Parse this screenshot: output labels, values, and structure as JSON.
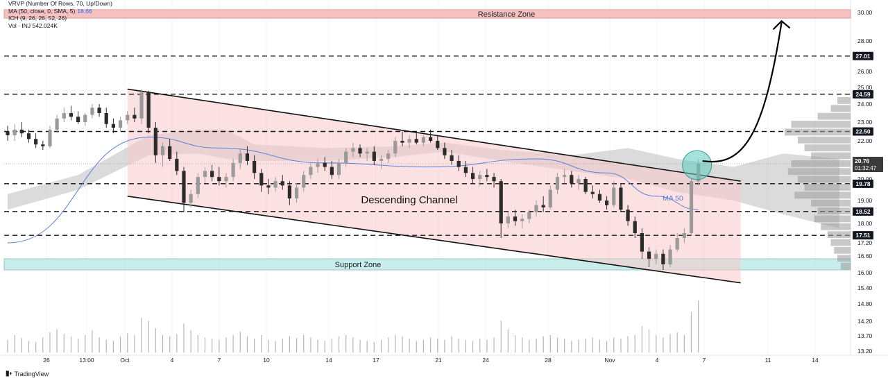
{
  "legend": {
    "vrvp": "VRVP (Number Of Rows, 70, Up/Down)",
    "ma": "MA (50, close, 0, SMA, 5)",
    "ma_value": "18.66",
    "ich": "ICH (9, 26, 26, 52, 26)",
    "vol": "Vol · INJ 542.024K"
  },
  "brand": {
    "text": "TradingView",
    "icon": "tradingview-logo-icon"
  },
  "colors": {
    "up": "#9a9a9a",
    "down": "#2b2b2b",
    "channel_fill": "#f7c9c9",
    "resistance_fill": "#f4b6b6",
    "support_fill": "#bfeae6",
    "ma": "#5b7fd6",
    "cloud": "#bdbdbd",
    "highlight": "#5fc9c0",
    "price_tag_bg": "#131722"
  },
  "chart_data": {
    "type": "candlestick",
    "title": "",
    "y_axis": {
      "ticks": [
        "30.00",
        "28.00",
        "26.00",
        "25.00",
        "24.00",
        "23.00",
        "22.00",
        "21.00",
        "20.00",
        "19.00",
        "18.00",
        "17.20",
        "16.60",
        "16.00",
        "15.40",
        "14.80",
        "14.20",
        "13.70",
        "13.20"
      ],
      "range": [
        13.2,
        30.3
      ],
      "scale": "log"
    },
    "x_axis": {
      "ticks": [
        "26",
        "13:00",
        "Oct",
        "4",
        "7",
        "10",
        "14",
        "17",
        "21",
        "24",
        "28",
        "Nov",
        "4",
        "7",
        "11",
        "14"
      ]
    },
    "levels": [
      {
        "label": "27.01",
        "value": 27.01
      },
      {
        "label": "24.59",
        "value": 24.59
      },
      {
        "label": "22.50",
        "value": 22.5
      },
      {
        "label": "19.78",
        "value": 19.78
      },
      {
        "label": "18.52",
        "value": 18.52
      },
      {
        "label": "17.51",
        "value": 17.51
      }
    ],
    "current_price": {
      "value": 20.76,
      "label": "20.76",
      "countdown": "01:32:47"
    },
    "zones": [
      {
        "label": "Resistance Zone",
        "low": 29.6,
        "high": 30.2
      },
      {
        "label": "Support Zone",
        "low": 16.1,
        "high": 16.5
      }
    ],
    "annotations": {
      "channel": "Descending Channel",
      "ma": "MA 50"
    },
    "channel": {
      "upper": {
        "start": [
          "Oct",
          24.9
        ],
        "end": [
          "Nov 7",
          19.9
        ]
      },
      "lower": {
        "start": [
          "Oct",
          19.2
        ],
        "end": [
          "Nov 7",
          15.6
        ]
      }
    },
    "candles": [
      [
        22.5,
        22.8,
        22.0,
        22.3
      ],
      [
        22.3,
        22.9,
        22.0,
        22.6
      ],
      [
        22.6,
        23.0,
        22.2,
        22.4
      ],
      [
        22.4,
        22.6,
        21.9,
        22.1
      ],
      [
        22.1,
        22.4,
        21.6,
        21.8
      ],
      [
        21.8,
        22.0,
        21.5,
        21.7
      ],
      [
        21.7,
        22.8,
        21.6,
        22.6
      ],
      [
        22.6,
        23.4,
        22.4,
        23.2
      ],
      [
        23.2,
        23.8,
        23.0,
        23.5
      ],
      [
        23.5,
        23.9,
        23.1,
        23.3
      ],
      [
        23.3,
        23.6,
        22.9,
        23.0
      ],
      [
        23.0,
        23.5,
        22.8,
        23.4
      ],
      [
        23.4,
        24.0,
        23.2,
        23.8
      ],
      [
        23.8,
        24.0,
        23.3,
        23.5
      ],
      [
        23.5,
        23.8,
        22.7,
        22.9
      ],
      [
        22.9,
        23.2,
        22.4,
        22.7
      ],
      [
        22.7,
        23.3,
        22.5,
        23.1
      ],
      [
        23.1,
        23.6,
        22.9,
        23.4
      ],
      [
        23.4,
        23.8,
        23.0,
        23.2
      ],
      [
        23.2,
        24.9,
        22.9,
        24.7
      ],
      [
        24.7,
        24.8,
        22.4,
        22.7
      ],
      [
        22.7,
        23.0,
        20.8,
        21.2
      ],
      [
        21.2,
        21.9,
        20.6,
        21.7
      ],
      [
        21.7,
        22.1,
        20.9,
        21.0
      ],
      [
        21.0,
        21.4,
        20.2,
        20.4
      ],
      [
        20.4,
        20.6,
        18.5,
        18.9
      ],
      [
        18.9,
        19.5,
        18.7,
        19.3
      ],
      [
        19.3,
        20.3,
        19.1,
        20.1
      ],
      [
        20.1,
        20.6,
        19.8,
        20.4
      ],
      [
        20.4,
        20.7,
        19.9,
        20.1
      ],
      [
        20.1,
        20.6,
        19.7,
        19.9
      ],
      [
        19.9,
        20.3,
        19.6,
        20.1
      ],
      [
        20.1,
        21.0,
        19.9,
        20.8
      ],
      [
        20.8,
        21.6,
        20.5,
        21.3
      ],
      [
        21.3,
        21.7,
        20.7,
        20.9
      ],
      [
        20.9,
        21.2,
        20.0,
        20.3
      ],
      [
        20.3,
        20.5,
        19.4,
        19.7
      ],
      [
        19.7,
        20.0,
        19.3,
        19.6
      ],
      [
        19.6,
        20.1,
        19.4,
        19.9
      ],
      [
        19.9,
        20.2,
        19.5,
        19.7
      ],
      [
        19.7,
        19.9,
        18.8,
        19.1
      ],
      [
        19.1,
        19.8,
        18.9,
        19.6
      ],
      [
        19.6,
        20.4,
        19.4,
        20.2
      ],
      [
        20.2,
        20.8,
        20.0,
        20.6
      ],
      [
        20.6,
        21.0,
        20.3,
        20.8
      ],
      [
        20.8,
        21.1,
        20.4,
        20.6
      ],
      [
        20.6,
        20.9,
        20.0,
        20.2
      ],
      [
        20.2,
        21.0,
        20.0,
        20.8
      ],
      [
        20.8,
        21.6,
        20.6,
        21.4
      ],
      [
        21.4,
        21.9,
        21.1,
        21.6
      ],
      [
        21.6,
        21.8,
        21.1,
        21.3
      ],
      [
        21.3,
        21.6,
        20.9,
        21.4
      ],
      [
        21.4,
        21.7,
        20.7,
        20.9
      ],
      [
        20.9,
        21.2,
        20.5,
        21.0
      ],
      [
        21.0,
        21.5,
        20.8,
        21.3
      ],
      [
        21.3,
        22.2,
        21.1,
        22.0
      ],
      [
        22.0,
        22.5,
        21.7,
        21.9
      ],
      [
        21.9,
        22.3,
        21.6,
        22.1
      ],
      [
        22.1,
        22.4,
        21.8,
        21.9
      ],
      [
        21.9,
        22.3,
        21.7,
        22.2
      ],
      [
        22.2,
        22.6,
        21.9,
        22.0
      ],
      [
        22.0,
        22.3,
        21.5,
        21.6
      ],
      [
        21.6,
        21.9,
        21.0,
        21.2
      ],
      [
        21.2,
        21.5,
        20.7,
        20.9
      ],
      [
        20.9,
        21.2,
        20.4,
        20.6
      ],
      [
        20.6,
        20.9,
        20.1,
        20.3
      ],
      [
        20.3,
        20.6,
        19.8,
        20.0
      ],
      [
        20.0,
        20.4,
        19.7,
        20.2
      ],
      [
        20.2,
        20.5,
        19.9,
        20.1
      ],
      [
        20.1,
        20.3,
        19.6,
        19.9
      ],
      [
        19.9,
        20.0,
        17.4,
        18.0
      ],
      [
        18.0,
        18.5,
        17.8,
        18.3
      ],
      [
        18.3,
        18.6,
        17.9,
        18.1
      ],
      [
        18.1,
        18.4,
        17.8,
        18.2
      ],
      [
        18.2,
        18.6,
        18.0,
        18.5
      ],
      [
        18.5,
        19.0,
        18.3,
        18.8
      ],
      [
        18.8,
        19.2,
        18.5,
        18.7
      ],
      [
        18.7,
        19.7,
        18.6,
        19.5
      ],
      [
        19.5,
        20.3,
        19.3,
        20.1
      ],
      [
        20.1,
        20.5,
        19.8,
        20.2
      ],
      [
        20.2,
        20.4,
        19.6,
        19.8
      ],
      [
        19.8,
        20.2,
        19.5,
        20.0
      ],
      [
        20.0,
        20.1,
        19.3,
        19.4
      ],
      [
        19.4,
        19.7,
        19.1,
        19.3
      ],
      [
        19.3,
        19.5,
        18.9,
        19.0
      ],
      [
        19.0,
        19.2,
        18.6,
        18.8
      ],
      [
        18.8,
        19.9,
        18.7,
        19.6
      ],
      [
        19.6,
        19.8,
        18.5,
        18.6
      ],
      [
        18.6,
        18.8,
        17.9,
        18.1
      ],
      [
        18.1,
        18.3,
        17.4,
        17.6
      ],
      [
        17.6,
        17.8,
        16.5,
        16.8
      ],
      [
        16.8,
        17.0,
        16.2,
        16.5
      ],
      [
        16.5,
        16.9,
        16.3,
        16.7
      ],
      [
        16.7,
        16.9,
        16.1,
        16.3
      ],
      [
        16.3,
        17.1,
        16.2,
        16.9
      ],
      [
        16.9,
        17.6,
        16.8,
        17.4
      ],
      [
        17.4,
        17.8,
        17.2,
        17.6
      ],
      [
        17.6,
        20.0,
        17.5,
        19.9
      ],
      [
        19.9,
        21.0,
        19.7,
        20.76
      ]
    ],
    "volume": [
      22,
      30,
      25,
      20,
      18,
      26,
      35,
      40,
      32,
      28,
      24,
      30,
      38,
      26,
      22,
      20,
      28,
      33,
      30,
      60,
      55,
      42,
      30,
      28,
      32,
      50,
      38,
      30,
      26,
      24,
      22,
      26,
      30,
      36,
      28,
      24,
      30,
      22,
      20,
      24,
      28,
      25,
      30,
      26,
      22,
      20,
      24,
      28,
      30,
      26,
      22,
      20,
      18,
      22,
      26,
      30,
      28,
      24,
      20,
      22,
      26,
      24,
      22,
      28,
      24,
      22,
      20,
      24,
      22,
      26,
      55,
      40,
      30,
      26,
      22,
      24,
      28,
      30,
      26,
      24,
      20,
      22,
      24,
      26,
      22,
      20,
      26,
      24,
      28,
      30,
      45,
      40,
      30,
      26,
      32,
      35,
      30,
      70,
      90
    ],
    "ma50": [
      [
        0,
        17.2
      ],
      [
        20,
        22.2
      ],
      [
        30,
        21.6
      ],
      [
        45,
        20.8
      ],
      [
        60,
        20.6
      ],
      [
        75,
        21.0
      ],
      [
        85,
        20.3
      ],
      [
        92,
        19.2
      ],
      [
        98,
        18.6
      ]
    ],
    "cloud_top": [
      [
        0,
        19.3
      ],
      [
        10,
        20.2
      ],
      [
        20,
        22.3
      ],
      [
        27,
        22.6
      ],
      [
        31,
        22.6
      ],
      [
        35,
        21.8
      ],
      [
        45,
        21.6
      ],
      [
        55,
        21.7
      ],
      [
        62,
        21.9
      ],
      [
        70,
        21.5
      ],
      [
        80,
        21.2
      ],
      [
        88,
        21.6
      ],
      [
        95,
        21.0
      ],
      [
        103,
        20.6
      ],
      [
        110,
        21.3
      ],
      [
        118,
        21.0
      ]
    ],
    "cloud_bottom": [
      [
        0,
        18.6
      ],
      [
        10,
        19.5
      ],
      [
        20,
        21.2
      ],
      [
        27,
        21.3
      ],
      [
        31,
        21.0
      ],
      [
        35,
        20.9
      ],
      [
        45,
        20.9
      ],
      [
        55,
        21.1
      ],
      [
        62,
        21.4
      ],
      [
        70,
        20.9
      ],
      [
        80,
        20.4
      ],
      [
        88,
        20.0
      ],
      [
        95,
        19.4
      ],
      [
        103,
        19.0
      ],
      [
        110,
        18.4
      ],
      [
        118,
        17.8
      ]
    ],
    "volume_profile": [
      0.2,
      0.3,
      0.5,
      0.9,
      1.0,
      0.8,
      0.7,
      0.6,
      0.9,
      0.95,
      0.8,
      0.7,
      0.85,
      0.6,
      0.5,
      0.55,
      0.45,
      0.35,
      0.3,
      0.25,
      0.2,
      0.15
    ],
    "projection": {
      "from": [
        98,
        20.9
      ],
      "to": [
        109.8,
        29.3
      ]
    }
  }
}
